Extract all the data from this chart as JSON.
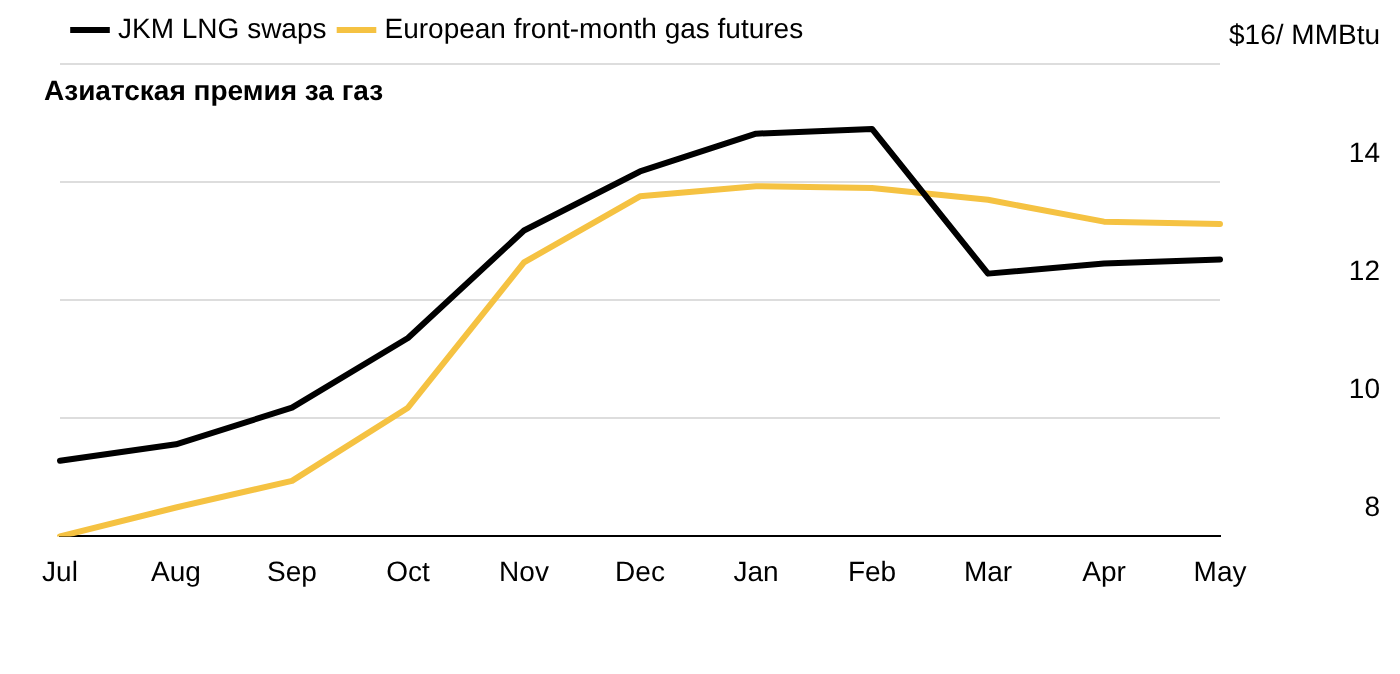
{
  "chart_data": {
    "type": "line",
    "title": "Азиатская премия за газ",
    "categories": [
      "Jul",
      "Aug",
      "Sep",
      "Oct",
      "Nov",
      "Dec",
      "Jan",
      "Feb",
      "Mar",
      "Apr",
      "May"
    ],
    "series": [
      {
        "name": "JKM LNG swaps",
        "color": "#000000",
        "values": [
          9.28,
          9.56,
          10.18,
          11.36,
          13.18,
          14.18,
          14.82,
          14.9,
          12.45,
          12.62,
          12.69
        ]
      },
      {
        "name": "European front-month gas futures",
        "color": "#f5c242",
        "values": [
          8.0,
          8.49,
          8.94,
          10.18,
          12.64,
          13.76,
          13.93,
          13.9,
          13.7,
          13.33,
          13.29
        ]
      }
    ],
    "ylim": [
      8,
      16
    ],
    "yticks": [
      8,
      10,
      12,
      14,
      {
        "value": 16,
        "label": "$16/ MMBtu"
      }
    ],
    "grid": "y",
    "legend": "top left",
    "marker": "none",
    "line_style": "solid"
  }
}
